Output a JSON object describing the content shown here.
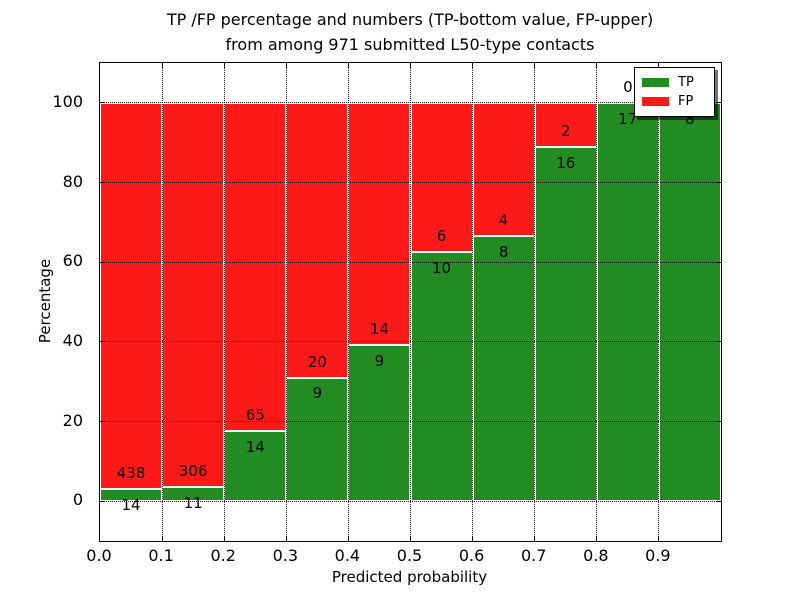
{
  "title": {
    "line1": "TP /FP percentage and numbers (TP-bottom value, FP-upper)",
    "line2": "from among 971 submitted L50-type contacts"
  },
  "axes": {
    "xlabel": "Predicted probability",
    "ylabel": "Percentage"
  },
  "legend": {
    "position": "upper-right",
    "entries": [
      {
        "label": "TP",
        "color": "#228B22"
      },
      {
        "label": "FP",
        "color": "#FF1A1A"
      }
    ]
  },
  "chart_data": {
    "type": "bar",
    "stacked": true,
    "normalized": "each bar rescaled to 100%",
    "title": "TP /FP percentage and numbers (TP-bottom value, FP-upper) from among 971 submitted L50-type contacts",
    "xlabel": "Predicted probability",
    "ylabel": "Percentage",
    "total_submitted_contacts": 971,
    "bin_width": 0.1,
    "bin_starts": [
      0.0,
      0.1,
      0.2,
      0.3,
      0.4,
      0.5,
      0.6,
      0.7,
      0.8,
      0.9
    ],
    "x_tick_labels": [
      "0.0",
      "0.1",
      "0.2",
      "0.3",
      "0.4",
      "0.5",
      "0.6",
      "0.7",
      "0.8",
      "0.9"
    ],
    "y_tick_values": [
      0,
      20,
      40,
      60,
      80,
      100
    ],
    "y_tick_labels": [
      "0",
      "20",
      "40",
      "60",
      "80",
      "100"
    ],
    "xlim": [
      0.0,
      1.0
    ],
    "ylim": [
      -10,
      110
    ],
    "grid": {
      "style": "dotted",
      "color": "#000000"
    },
    "series": [
      {
        "name": "TP",
        "color": "#228B22",
        "counts": [
          14,
          11,
          14,
          9,
          9,
          10,
          8,
          16,
          17,
          8
        ]
      },
      {
        "name": "FP",
        "color": "#FF1A1A",
        "counts": [
          438,
          306,
          65,
          20,
          14,
          6,
          4,
          2,
          0,
          0
        ]
      }
    ],
    "tp_percentages": [
      3.1,
      3.5,
      17.7,
      31.0,
      39.1,
      62.5,
      66.7,
      88.9,
      100.0,
      100.0
    ],
    "label_offset_pct": 4
  }
}
